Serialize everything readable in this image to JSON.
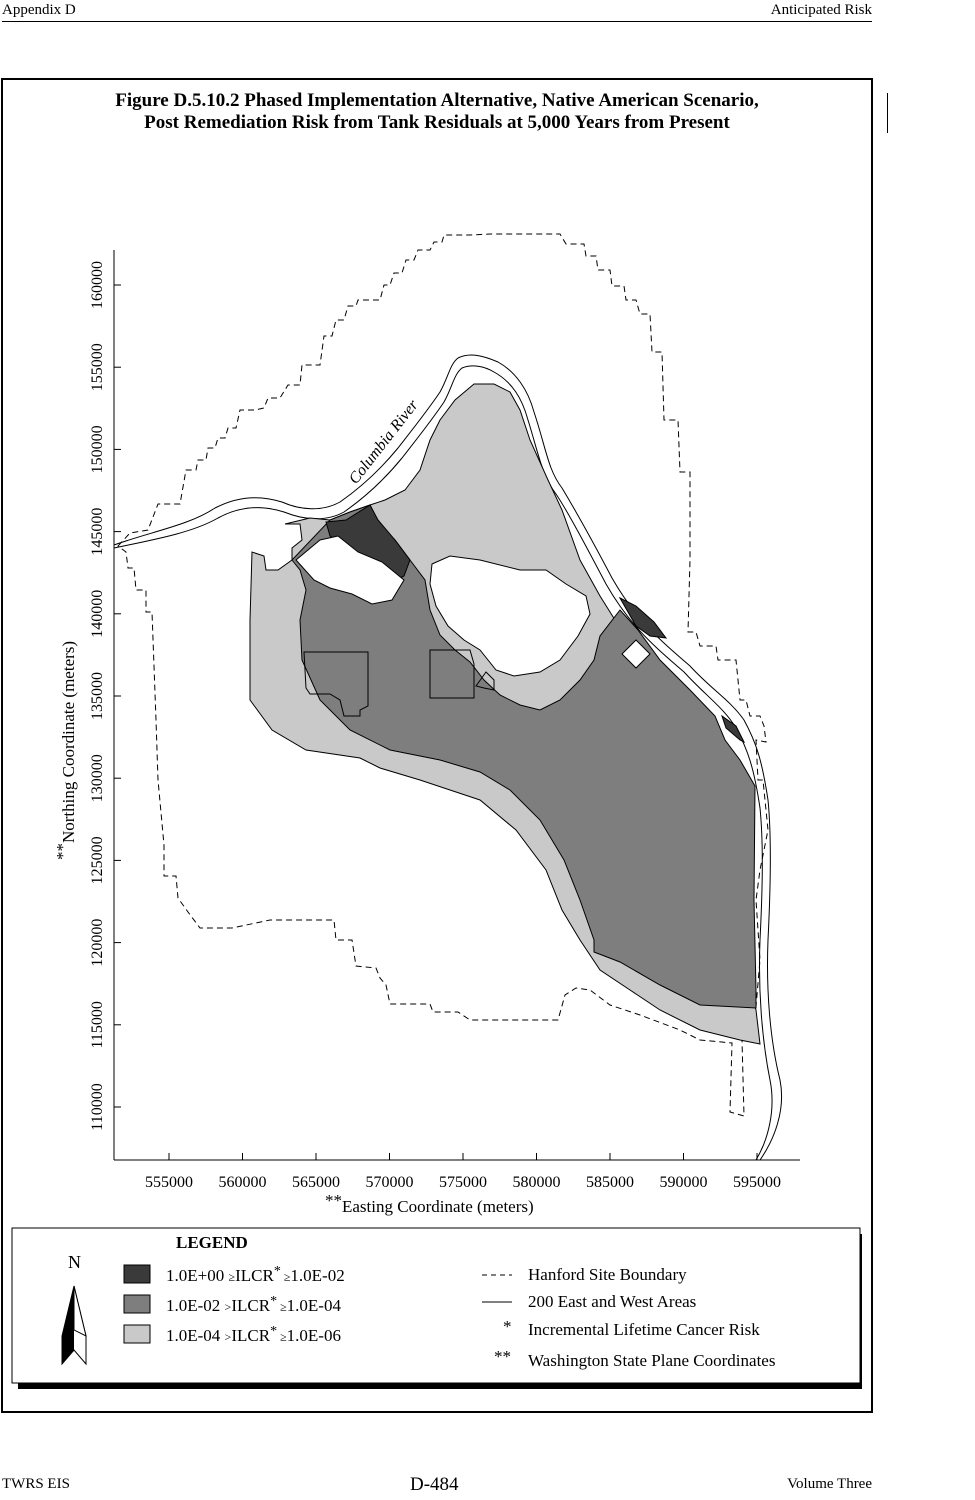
{
  "header": {
    "left": "Appendix D",
    "right": "Anticipated Risk"
  },
  "footer": {
    "left": "TWRS EIS",
    "center": "D-484",
    "right": "Volume Three"
  },
  "figure": {
    "title_line1": "Figure D.5.10.2  Phased Implementation Alternative, Native American Scenario,",
    "title_line2": "Post Remediation Risk from Tank Residuals at 5,000 Years from Present",
    "x_axis_label": "Easting Coordinate (meters)",
    "y_axis_label": "Northing Coordinate (meters)",
    "axis_label_marker": "**",
    "x_ticks": [
      "555000",
      "560000",
      "565000",
      "570000",
      "575000",
      "580000",
      "585000",
      "590000",
      "595000"
    ],
    "y_ticks": [
      "110000",
      "115000",
      "120000",
      "125000",
      "130000",
      "135000",
      "140000",
      "145000",
      "150000",
      "155000",
      "160000"
    ],
    "river_label": "Columbia River"
  },
  "legend": {
    "title": "LEGEND",
    "north_symbol": "N",
    "risk_classes": [
      {
        "range_high": "1.0E+00",
        "op_high": "≥",
        "label": "ILCR",
        "marker": "*",
        "op_low": "≥",
        "range_low": "1.0E-02",
        "color": "#3a3a3a"
      },
      {
        "range_high": "1.0E-02",
        "op_high": ">",
        "label": "ILCR",
        "marker": "*",
        "op_low": "≥",
        "range_low": "1.0E-04",
        "color": "#7e7e7e"
      },
      {
        "range_high": "1.0E-04",
        "op_high": ">",
        "label": "ILCR",
        "marker": "*",
        "op_low": "≥",
        "range_low": "1.0E-06",
        "color": "#c9c9c9"
      }
    ],
    "line_items": [
      {
        "symbol": "dashed-line",
        "label": "Hanford Site Boundary"
      },
      {
        "symbol": "solid-line",
        "label": "200 East and West Areas"
      },
      {
        "symbol": "*",
        "label": "Incremental Lifetime Cancer Risk"
      },
      {
        "symbol": "**",
        "label": "Washington State Plane Coordinates"
      }
    ]
  }
}
